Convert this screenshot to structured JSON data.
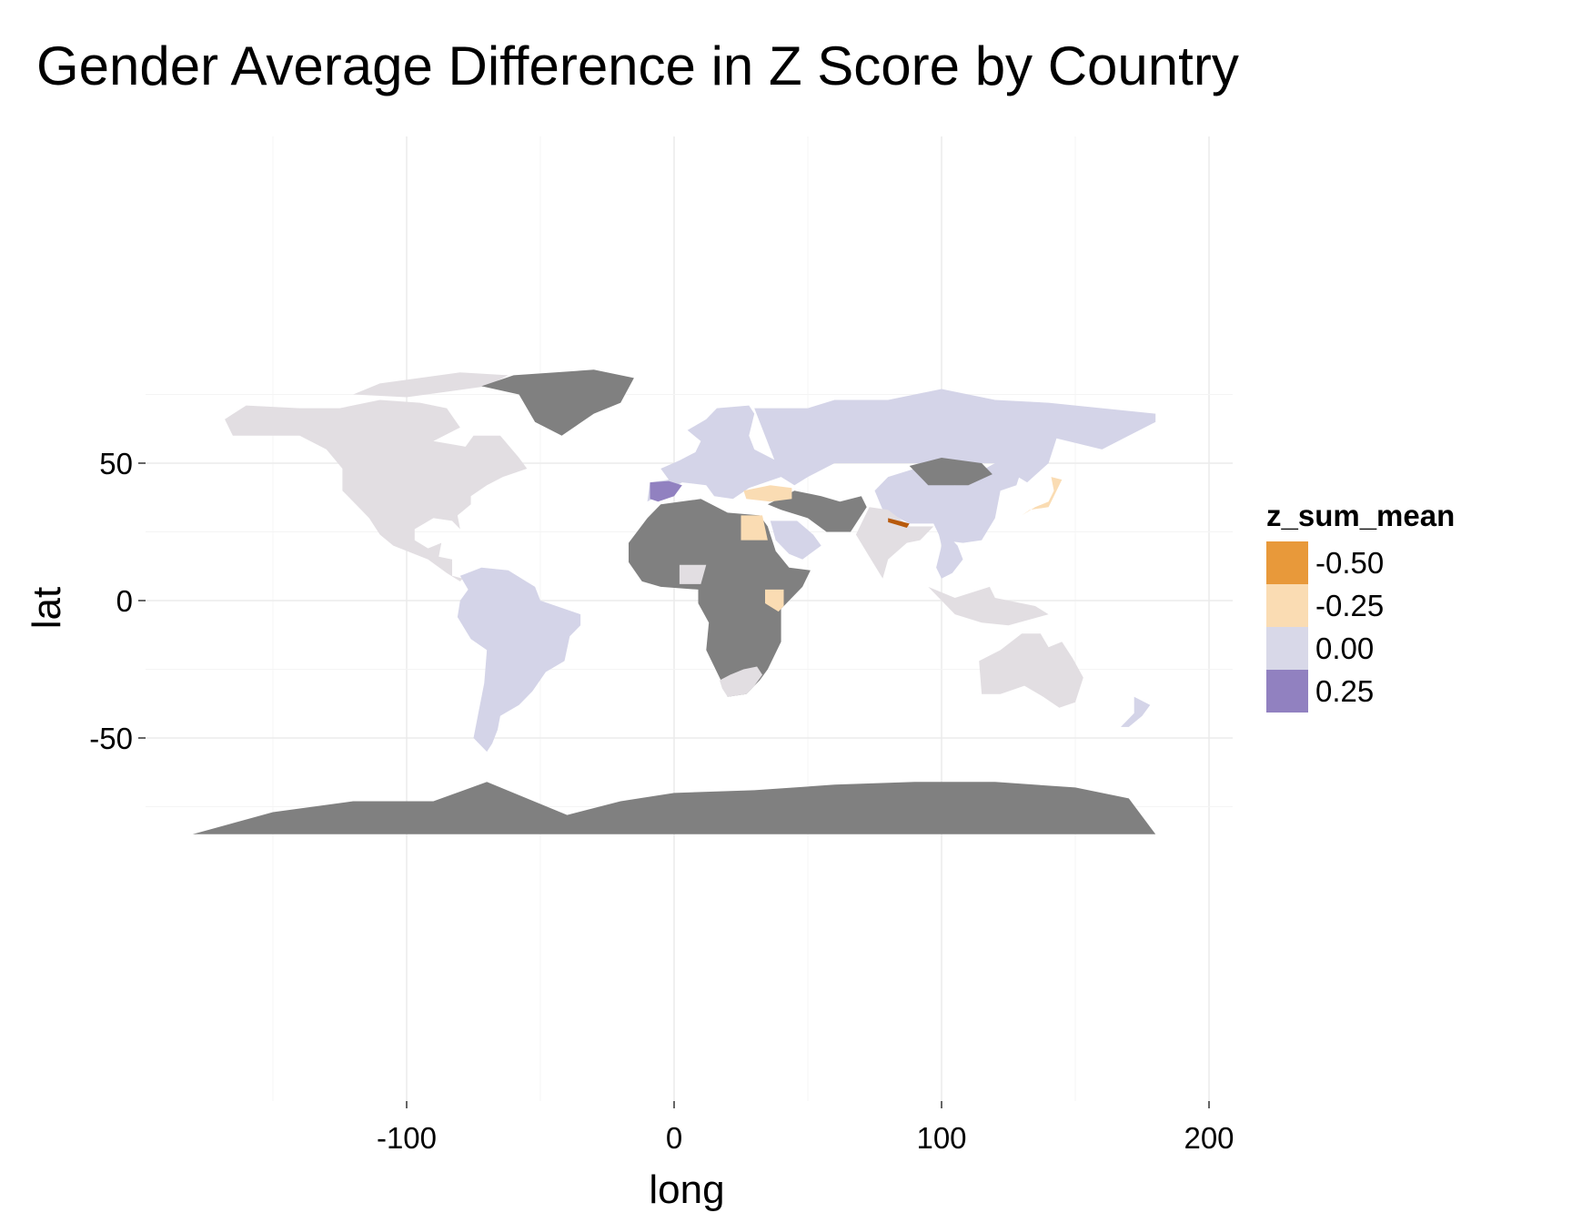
{
  "title": "Gender Average Difference in Z Score by Country",
  "chart_data": {
    "type": "map",
    "title": "Gender Average Difference in Z Score by Country",
    "xlabel": "long",
    "ylabel": "lat",
    "xlim": [
      -190,
      210
    ],
    "ylim": [
      -95,
      90
    ],
    "x_ticks": [
      -100,
      0,
      100,
      200
    ],
    "y_ticks": [
      50,
      0,
      -50
    ],
    "x_tick_labels": [
      "-100",
      "0",
      "100",
      "200"
    ],
    "y_tick_labels": [
      "50",
      "0",
      "-50"
    ],
    "grid": true,
    "legend": {
      "title": "z_sum_mean",
      "placement": "right",
      "entries": [
        {
          "label": "-0.50",
          "value": -0.5,
          "color": "#E8993A"
        },
        {
          "label": "-0.25",
          "value": -0.25,
          "color": "#FADCB3"
        },
        {
          "label": "0.00",
          "value": 0.0,
          "color": "#D8D8E8"
        },
        {
          "label": "0.25",
          "value": 0.25,
          "color": "#9181C0"
        }
      ]
    },
    "colors": {
      "no_data": "#808080",
      "neutral": "#E2DEE2",
      "light_purple": "#D4D4E8",
      "purple": "#9181C0",
      "light_orange": "#FADCB3",
      "orange": "#E8993A",
      "dark_orange": "#B85A0C"
    }
  }
}
